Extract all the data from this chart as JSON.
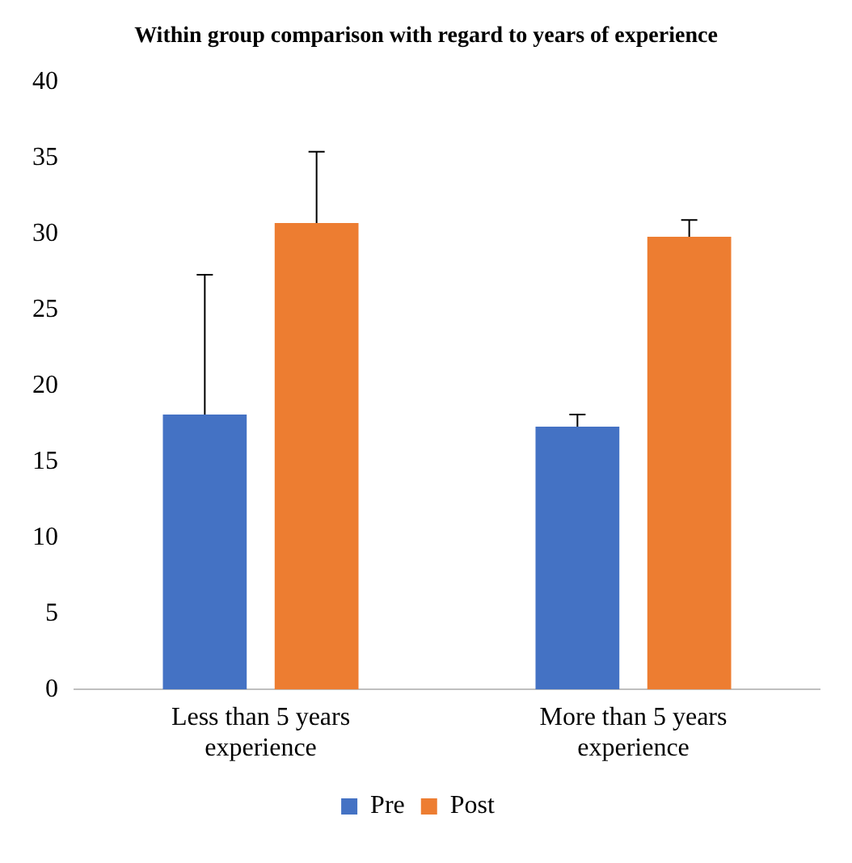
{
  "chart_data": {
    "type": "bar",
    "title": "Within group comparison with regard to years of experience",
    "categories": [
      "Less than 5 years experience",
      "More than 5 years experience"
    ],
    "series": [
      {
        "name": "Pre",
        "color": "#4472c4",
        "values": [
          18.1,
          17.3
        ],
        "errors": [
          [
            18.1,
            27.3
          ],
          [
            17.3,
            18.1
          ]
        ]
      },
      {
        "name": "Post",
        "color": "#ed7d31",
        "values": [
          30.7,
          29.8
        ],
        "errors": [
          [
            30.7,
            35.4
          ],
          [
            29.8,
            30.9
          ]
        ]
      }
    ],
    "ylim": [
      0,
      40
    ],
    "yticks": [
      0,
      5,
      10,
      15,
      20,
      25,
      30,
      35,
      40
    ],
    "grid": false,
    "legend": "bottom"
  }
}
